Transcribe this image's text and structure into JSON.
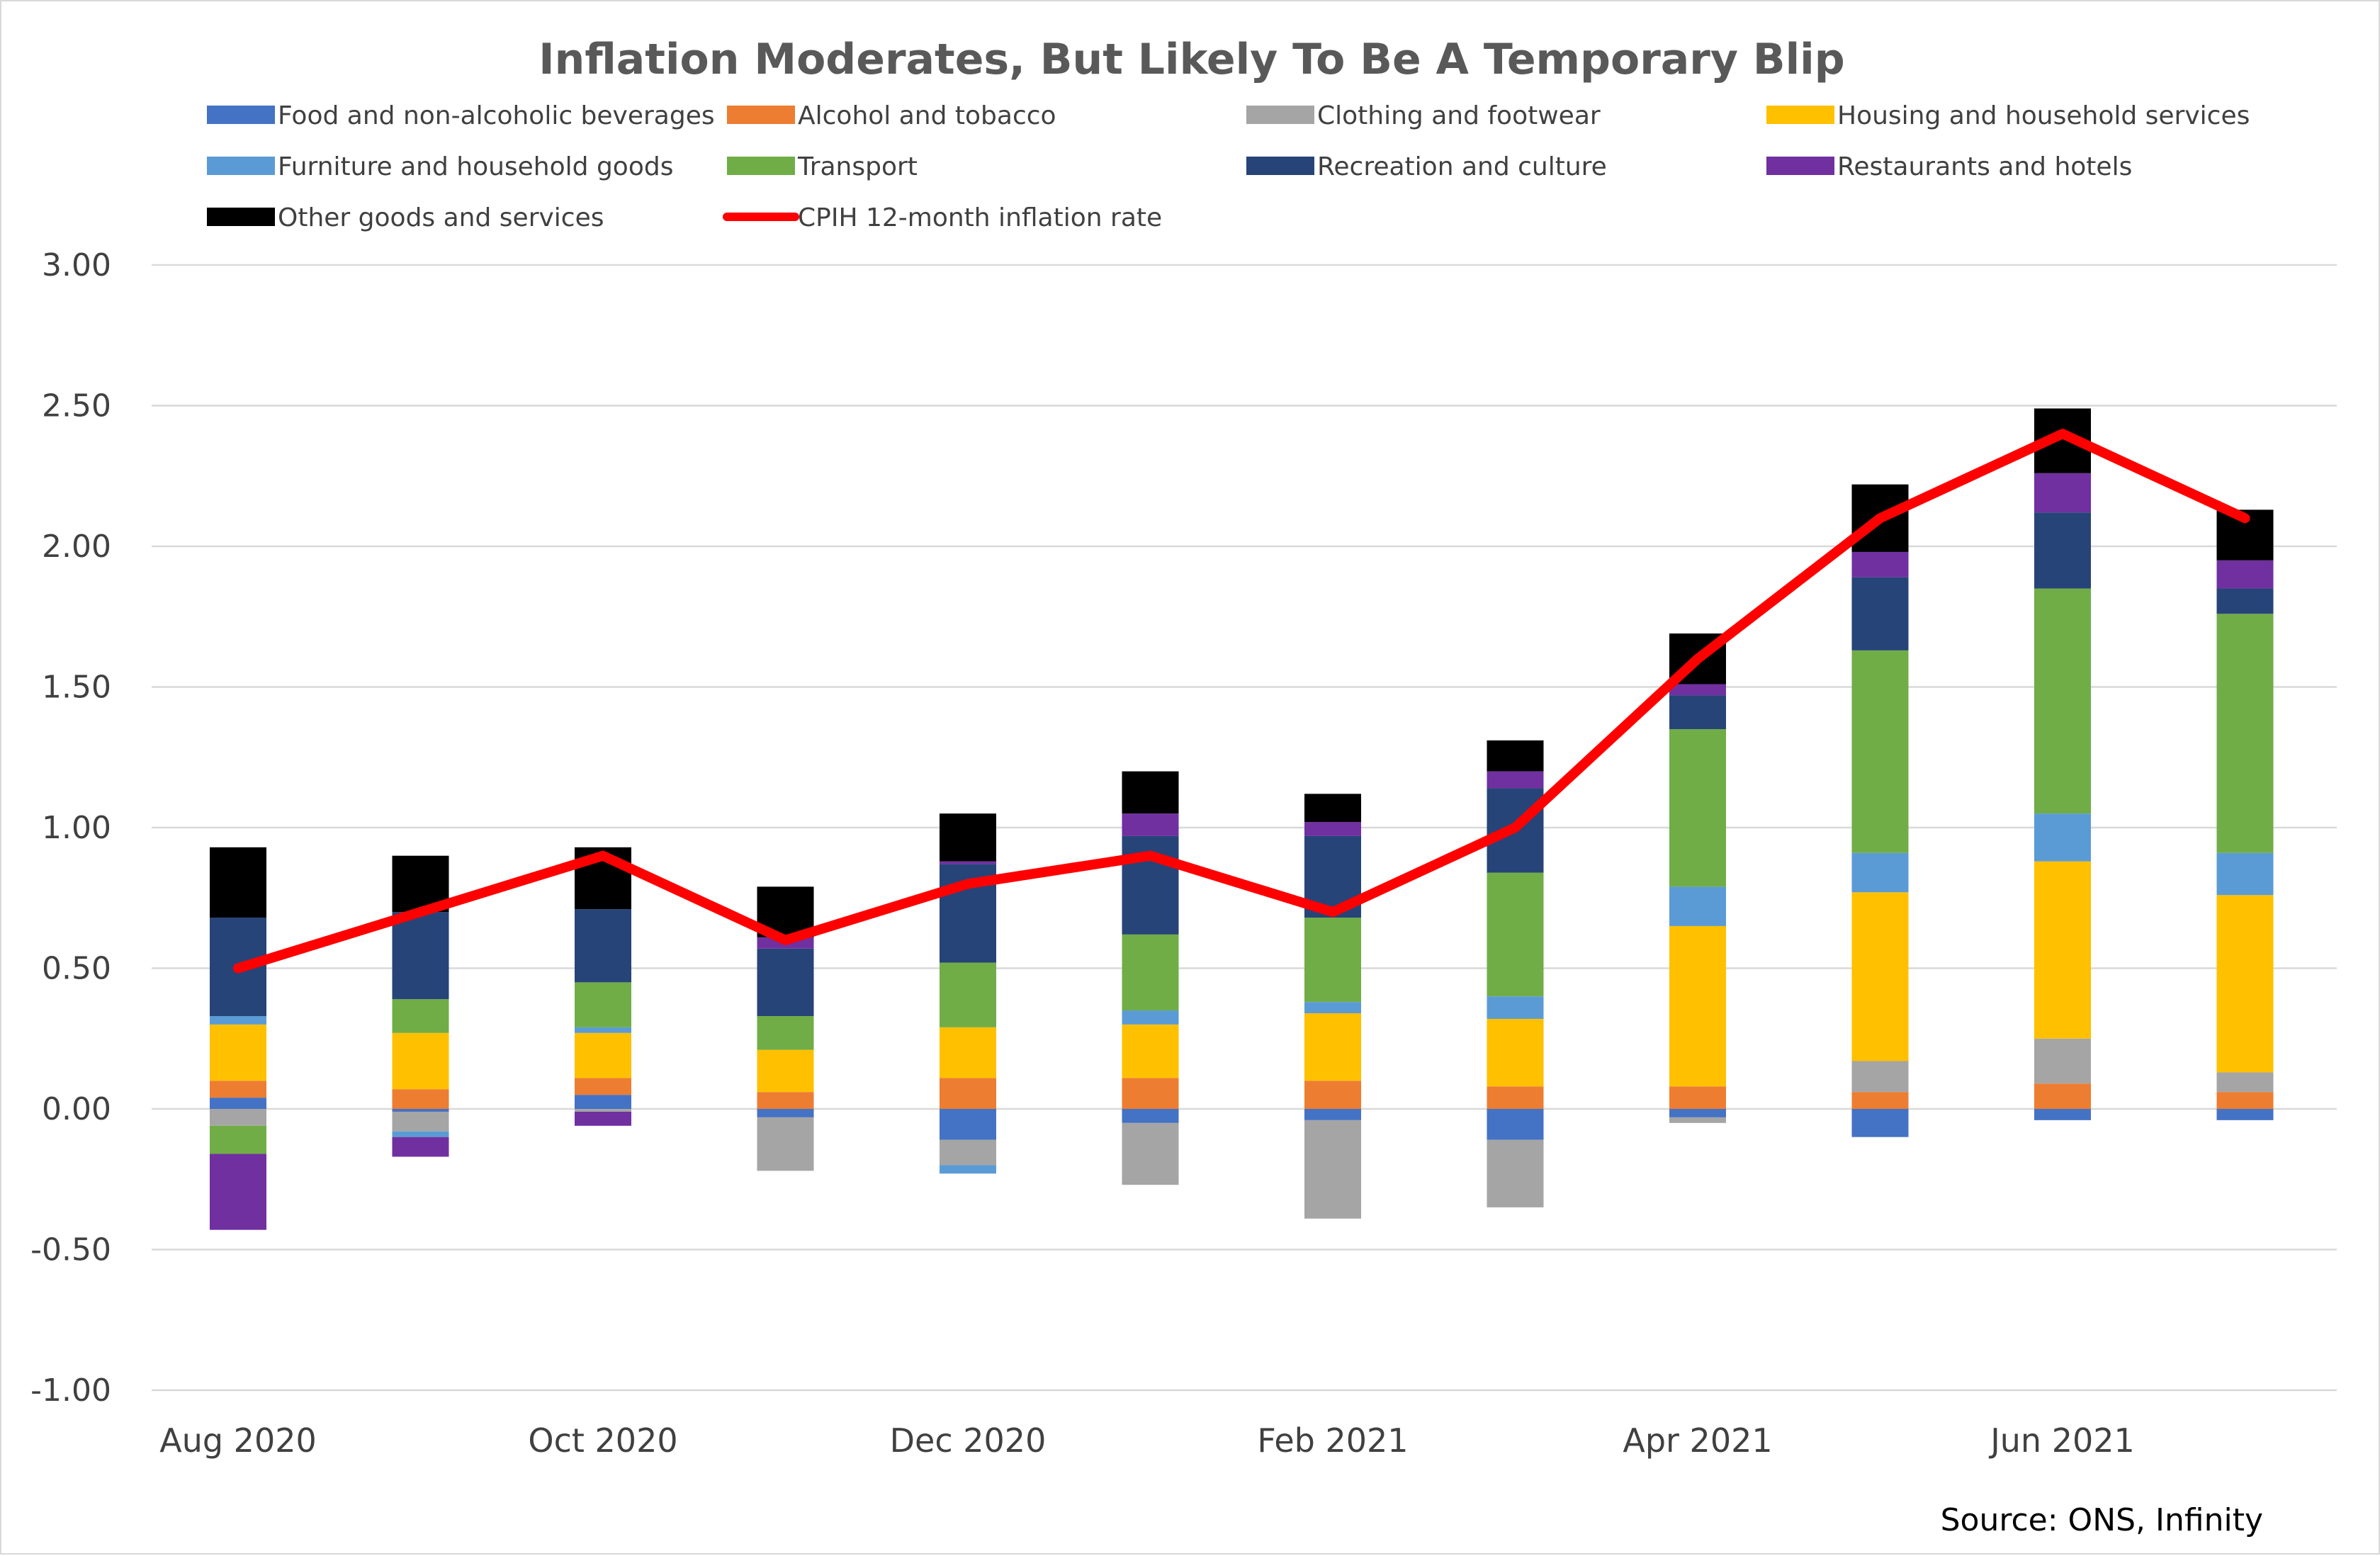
{
  "chart_data": {
    "type": "bar",
    "stacked": true,
    "title": "Inflation Moderates, But Likely To Be A Temporary Blip",
    "source": "Source: ONS, Infinity",
    "xlabel": "",
    "ylabel": "",
    "ylim": [
      -1.0,
      3.0
    ],
    "y_ticks": [
      "3.00",
      "2.50",
      "2.00",
      "1.50",
      "1.00",
      "0.50",
      "0.00",
      "-0.50",
      "-1.00"
    ],
    "grid": true,
    "legend_position": "top",
    "categories": [
      "Aug 2020",
      "Sep 2020",
      "Oct 2020",
      "Nov 2020",
      "Dec 2020",
      "Jan 2021",
      "Feb 2021",
      "Mar 2021",
      "Apr 2021",
      "May 2021",
      "Jun 2021",
      "Jul 2021"
    ],
    "x_tick_labels": [
      "Aug 2020",
      "",
      "Oct 2020",
      "",
      "Dec 2020",
      "",
      "Feb 2021",
      "",
      "Apr 2021",
      "",
      "Jun 2021",
      ""
    ],
    "series": [
      {
        "name": "Food and non-alcoholic beverages",
        "color": "#4472c4",
        "values": [
          0.04,
          -0.01,
          0.05,
          -0.03,
          -0.11,
          -0.05,
          -0.04,
          -0.11,
          -0.03,
          -0.1,
          -0.04,
          -0.04
        ]
      },
      {
        "name": "Alcohol and tobacco",
        "color": "#ed7d31",
        "values": [
          0.06,
          0.07,
          0.06,
          0.06,
          0.11,
          0.11,
          0.1,
          0.08,
          0.08,
          0.06,
          0.09,
          0.06
        ]
      },
      {
        "name": "Clothing and footwear",
        "color": "#a5a5a5",
        "values": [
          -0.06,
          -0.07,
          -0.01,
          -0.19,
          -0.09,
          -0.22,
          -0.35,
          -0.24,
          -0.02,
          0.11,
          0.16,
          0.07
        ]
      },
      {
        "name": "Housing and household services",
        "color": "#ffc000",
        "values": [
          0.2,
          0.2,
          0.16,
          0.15,
          0.18,
          0.19,
          0.24,
          0.24,
          0.57,
          0.6,
          0.63,
          0.63
        ]
      },
      {
        "name": "Furniture and household goods",
        "color": "#5b9bd5",
        "values": [
          0.03,
          -0.02,
          0.02,
          0.0,
          -0.03,
          0.05,
          0.04,
          0.08,
          0.14,
          0.14,
          0.17,
          0.15
        ]
      },
      {
        "name": "Transport",
        "color": "#70ad47",
        "values": [
          -0.1,
          0.12,
          0.16,
          0.12,
          0.23,
          0.27,
          0.3,
          0.44,
          0.56,
          0.72,
          0.8,
          0.85
        ]
      },
      {
        "name": "Recreation and culture",
        "color": "#264478",
        "values": [
          0.35,
          0.31,
          0.26,
          0.24,
          0.35,
          0.35,
          0.29,
          0.3,
          0.12,
          0.26,
          0.27,
          0.09
        ]
      },
      {
        "name": "Restaurants and hotels",
        "color": "#7030a0",
        "values": [
          -0.27,
          -0.07,
          -0.05,
          0.04,
          0.01,
          0.08,
          0.05,
          0.06,
          0.04,
          0.09,
          0.14,
          0.1
        ]
      },
      {
        "name": "Other goods and services",
        "color": "#000000",
        "values": [
          0.25,
          0.2,
          0.22,
          0.18,
          0.17,
          0.15,
          0.1,
          0.11,
          0.18,
          0.24,
          0.23,
          0.18
        ]
      }
    ],
    "line_series": {
      "name": "CPIH 12-month inflation rate",
      "color": "#ff0000",
      "values": [
        0.5,
        0.7,
        0.9,
        0.6,
        0.8,
        0.9,
        0.7,
        1.0,
        1.6,
        2.1,
        2.4,
        2.1
      ]
    }
  }
}
